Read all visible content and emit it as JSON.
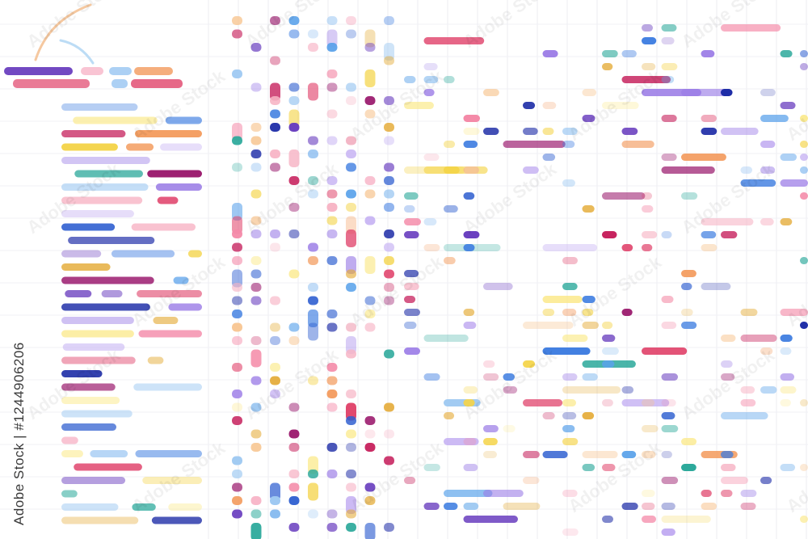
{
  "watermark": {
    "vertical": "Adobe Stock | #1244906206",
    "tiled": "Adobe Stock"
  }
}
